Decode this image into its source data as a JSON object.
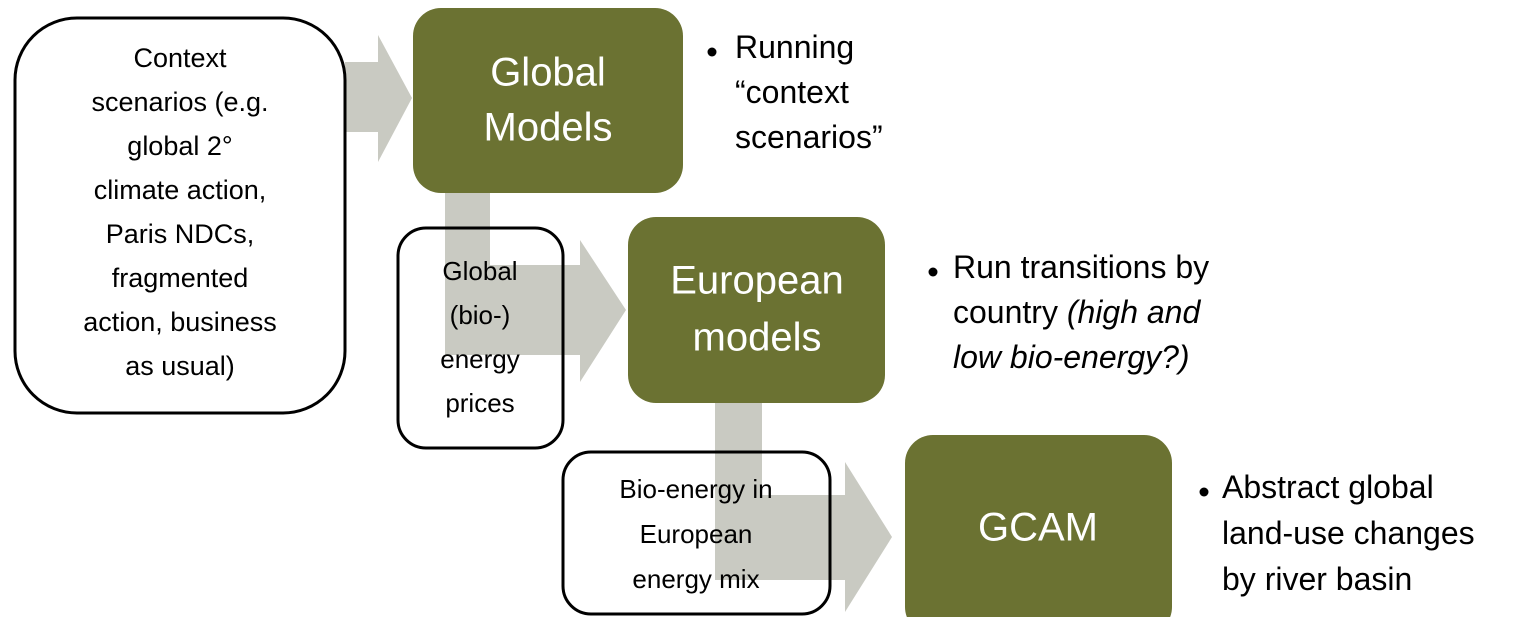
{
  "nodes": [
    {
      "label": [
        "Context",
        "scenarios (e.g.",
        "global 2°",
        "climate action,",
        "Paris NDCs,",
        "fragmented",
        "action, business",
        "as usual)"
      ]
    },
    {
      "label": [
        "Global",
        "Models"
      ]
    },
    {
      "label": [
        "Global",
        "(bio-)",
        "energy",
        "prices"
      ]
    },
    {
      "label": [
        "European",
        "models"
      ]
    },
    {
      "label": [
        "Bio-energy in",
        "European",
        "energy mix"
      ]
    },
    {
      "label": [
        "GCAM"
      ]
    }
  ],
  "notes": [
    {
      "lines": [
        [
          {
            "text": "Running",
            "italic": false
          }
        ],
        [
          {
            "text": "“context",
            "italic": false
          }
        ],
        [
          {
            "text": "scenarios”",
            "italic": false
          }
        ]
      ]
    },
    {
      "lines": [
        [
          {
            "text": "Run transitions by",
            "italic": false
          }
        ],
        [
          {
            "text": "country ",
            "italic": false
          },
          {
            "text": "(high and",
            "italic": true
          }
        ],
        [
          {
            "text": "low bio-energy?)",
            "italic": true
          }
        ]
      ]
    },
    {
      "lines": [
        [
          {
            "text": "Abstract global",
            "italic": false
          }
        ],
        [
          {
            "text": "land-use changes",
            "italic": false
          }
        ],
        [
          {
            "text": "by river basin",
            "italic": false
          }
        ]
      ]
    }
  ]
}
